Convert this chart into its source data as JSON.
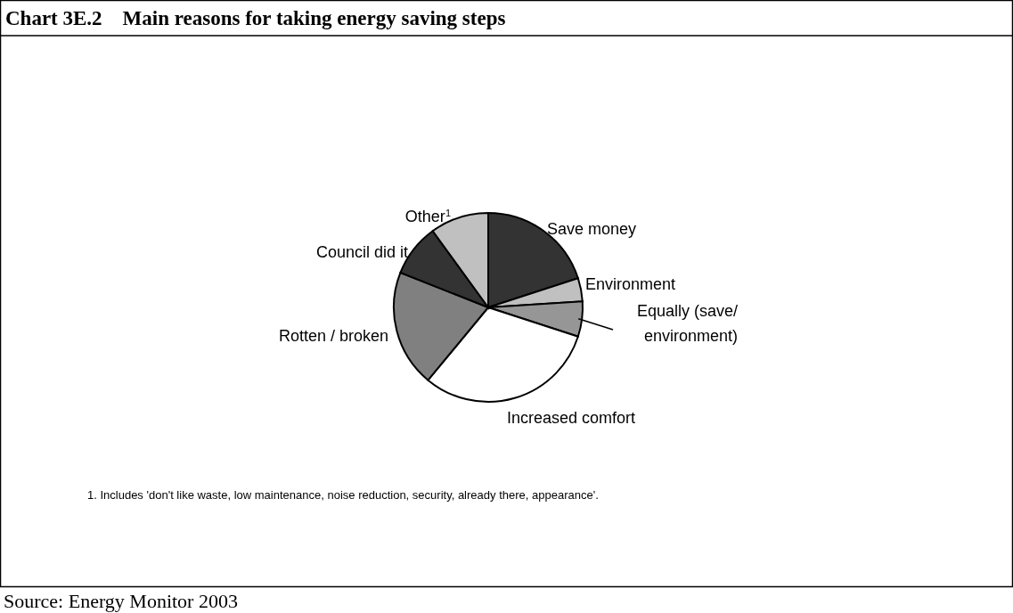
{
  "chart_data": {
    "type": "pie",
    "title": "Chart 3E.2    Main reasons for taking energy saving steps",
    "categories": [
      "Save money",
      "Environment",
      "Equally (save/\nenvironment)",
      "Increased comfort",
      "Rotten / broken",
      "Council did it",
      "Other$^{1}$"
    ],
    "values": [
      20,
      4,
      6,
      31,
      20,
      9,
      10
    ],
    "colors": [
      "#333333",
      "#c0c0c0",
      "#969696",
      "#ffffff",
      "#808080",
      "#333333",
      "#c0c0c0"
    ],
    "annotations": [
      "1. Includes 'don't like waste, low maintenance, noise reduction, security, already there, appearance'.",
      "Source: Energy Monitor 2003"
    ]
  }
}
